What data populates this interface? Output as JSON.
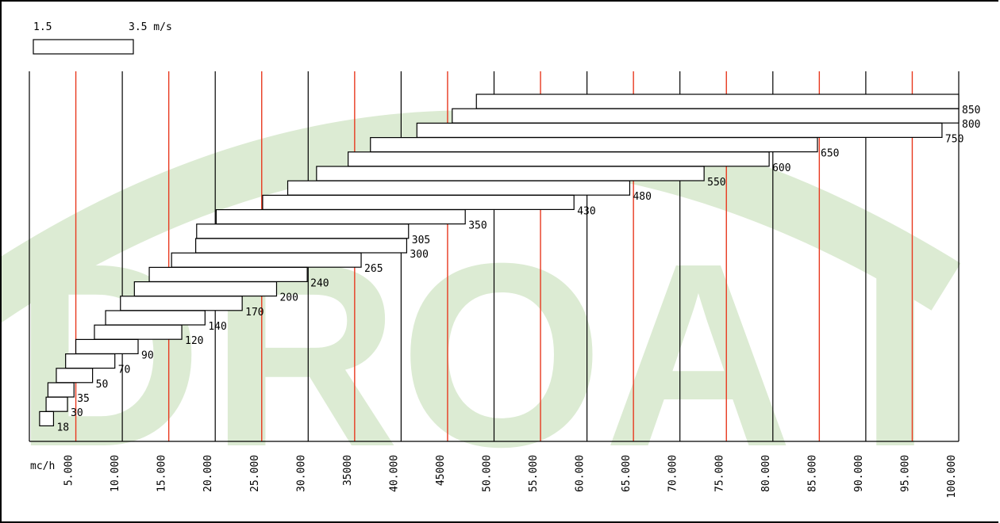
{
  "chart_data": {
    "type": "bar",
    "orientation": "horizontal-range",
    "title": "",
    "legend": {
      "left_label": "1.5",
      "right_label": "3.5 m/s"
    },
    "xlabel": "mc/h",
    "xlim": [
      0,
      100000
    ],
    "x_major_ticks": [
      0,
      10000,
      20000,
      30000,
      40000,
      50000,
      60000,
      70000,
      80000,
      90000,
      100000
    ],
    "x_minor_ticks": [
      5000,
      15000,
      25000,
      35000,
      45000,
      55000,
      65000,
      75000,
      85000,
      95000
    ],
    "x_tick_labels": [
      "5.000",
      "10.000",
      "15.000",
      "20.000",
      "25.000",
      "30.000",
      "35000",
      "40.000",
      "45000",
      "50.000",
      "55.000",
      "60.000",
      "65.000",
      "70.000",
      "75.000",
      "80.000",
      "85.000",
      "90.000",
      "95.000",
      "100.000"
    ],
    "x_tick_label_values": [
      5000,
      10000,
      15000,
      20000,
      25000,
      30000,
      35000,
      40000,
      45000,
      50000,
      55000,
      60000,
      65000,
      70000,
      75000,
      80000,
      85000,
      90000,
      95000,
      100000
    ],
    "colors": {
      "major_grid": "#000000",
      "minor_grid": "#e8391f",
      "bar_fill": "#ffffff",
      "bar_stroke": "#000000",
      "watermark": "#dcebd3"
    },
    "watermark_text": "DROAI",
    "series": [
      {
        "label": "850",
        "min": 48100,
        "max": 100000
      },
      {
        "label": "800",
        "min": 45500,
        "max": 100000
      },
      {
        "label": "750",
        "min": 41700,
        "max": 98200
      },
      {
        "label": "650",
        "min": 36700,
        "max": 84800
      },
      {
        "label": "600",
        "min": 34300,
        "max": 79600
      },
      {
        "label": "550",
        "min": 30900,
        "max": 72600
      },
      {
        "label": "480",
        "min": 27800,
        "max": 64600
      },
      {
        "label": "430",
        "min": 25100,
        "max": 58600
      },
      {
        "label": "350",
        "min": 20100,
        "max": 46900
      },
      {
        "label": "305",
        "min": 18000,
        "max": 40800
      },
      {
        "label": "300",
        "min": 17900,
        "max": 40600
      },
      {
        "label": "265",
        "min": 15300,
        "max": 35700
      },
      {
        "label": "240",
        "min": 12900,
        "max": 29900
      },
      {
        "label": "200",
        "min": 11300,
        "max": 26600
      },
      {
        "label": "170",
        "min": 9800,
        "max": 22900
      },
      {
        "label": "140",
        "min": 8200,
        "max": 18900
      },
      {
        "label": "120",
        "min": 7000,
        "max": 16400
      },
      {
        "label": "90",
        "min": 5000,
        "max": 11700
      },
      {
        "label": "70",
        "min": 3900,
        "max": 9200
      },
      {
        "label": "50",
        "min": 2900,
        "max": 6800
      },
      {
        "label": "35",
        "min": 2000,
        "max": 4800
      },
      {
        "label": "30",
        "min": 1800,
        "max": 4100
      },
      {
        "label": "18",
        "min": 1100,
        "max": 2600
      }
    ]
  }
}
